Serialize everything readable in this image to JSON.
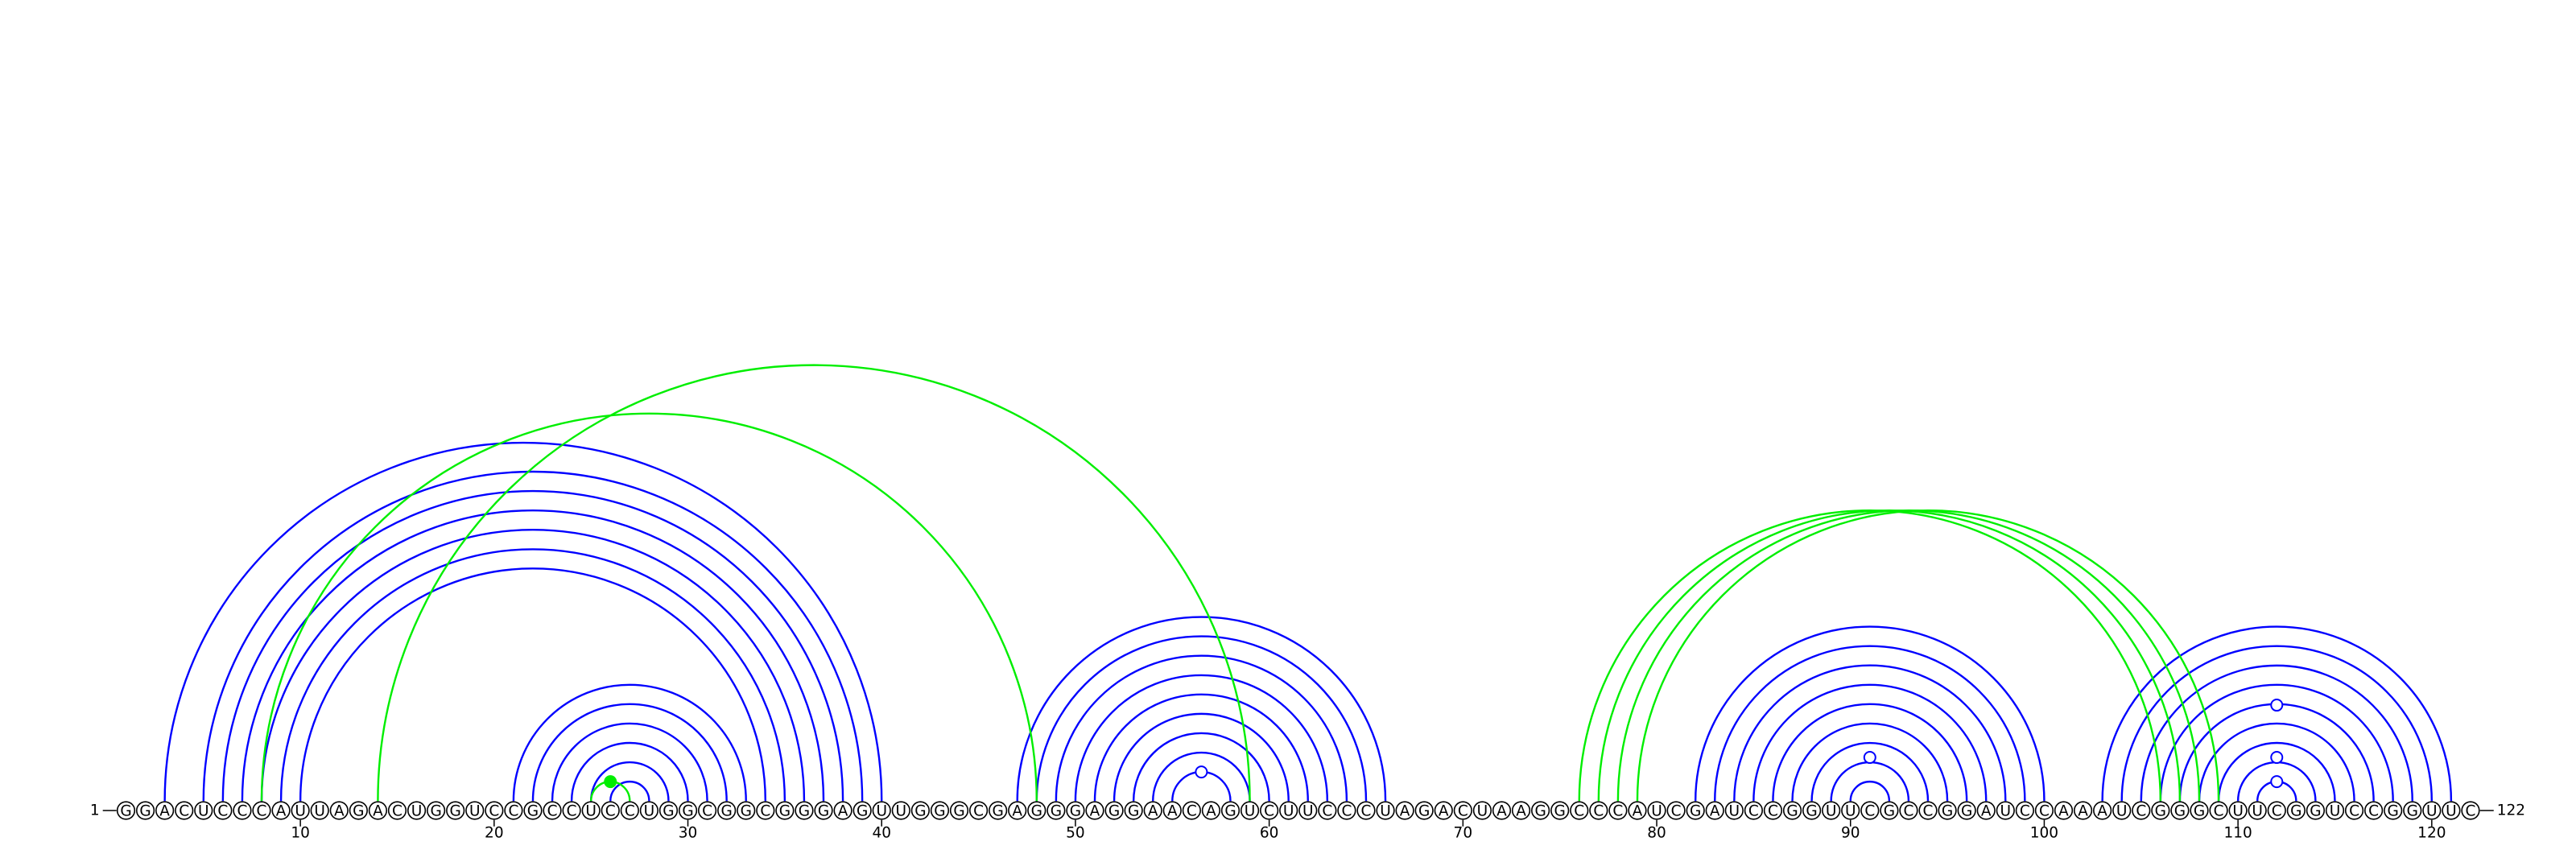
{
  "sequence": "GGACUCCCAUUAGACUGGUCCGCCUCCUGGCGGCGGGAGUUGGGCGAGGGAGGAACAGUCUUCCCUAGACUAAGGCCCAUCGAUCCGGUUCGCCGGAUCCAAAUCGGGCUUCGGUCCGGUUC",
  "start_label": "1",
  "end_label": "122",
  "tick_numbers": [
    "10",
    "20",
    "30",
    "40",
    "50",
    "60",
    "70",
    "80",
    "90",
    "100",
    "110",
    "120"
  ],
  "colors": {
    "structure_a": "#0000ff",
    "structure_b": "#00ee00",
    "backbone": "#000000"
  },
  "arc_groups": [
    {
      "structure": "a",
      "pairs": [
        [
          3,
          40
        ],
        [
          5,
          39
        ],
        [
          6,
          38
        ],
        [
          7,
          37
        ],
        [
          8,
          36
        ],
        [
          9,
          35
        ],
        [
          10,
          34
        ]
      ]
    },
    {
      "structure": "a",
      "pairs": [
        [
          21,
          33
        ],
        [
          22,
          32
        ],
        [
          23,
          31
        ],
        [
          24,
          30
        ],
        [
          25,
          29
        ],
        [
          26,
          28
        ]
      ]
    },
    {
      "structure": "a",
      "pairs": [
        [
          47,
          66
        ],
        [
          48,
          65
        ],
        [
          49,
          64
        ],
        [
          50,
          63
        ],
        [
          51,
          62
        ],
        [
          52,
          61
        ],
        [
          53,
          60
        ],
        [
          54,
          59
        ],
        [
          55,
          58
        ]
      ]
    },
    {
      "structure": "a",
      "pairs": [
        [
          82,
          100
        ],
        [
          83,
          99
        ],
        [
          84,
          98
        ],
        [
          85,
          97
        ],
        [
          86,
          96
        ],
        [
          87,
          95
        ],
        [
          88,
          94
        ],
        [
          89,
          93
        ],
        [
          90,
          92
        ]
      ]
    },
    {
      "structure": "a",
      "pairs": [
        [
          103,
          121
        ],
        [
          104,
          120
        ],
        [
          105,
          119
        ],
        [
          106,
          118
        ],
        [
          107,
          117
        ],
        [
          108,
          116
        ],
        [
          109,
          115
        ],
        [
          110,
          114
        ],
        [
          111,
          113
        ]
      ]
    },
    {
      "structure": "b",
      "pairs": [
        [
          8,
          48
        ],
        [
          14,
          59
        ]
      ]
    },
    {
      "structure": "b",
      "pairs": [
        [
          25,
          27
        ]
      ]
    },
    {
      "structure": "b",
      "pairs": [
        [
          76,
          106
        ],
        [
          77,
          107
        ],
        [
          78,
          108
        ],
        [
          79,
          109
        ]
      ]
    }
  ],
  "markers": [
    {
      "structure": "a",
      "position": 56.5,
      "level": 1,
      "filled": false
    },
    {
      "structure": "a",
      "position": 91,
      "level": 0.25,
      "filled": false
    },
    {
      "structure": "a",
      "position": 112,
      "level": 0.25,
      "filled": false
    },
    {
      "structure": "a",
      "position": 112,
      "level": 0.55,
      "filled": false
    },
    {
      "structure": "a",
      "position": 112,
      "level": 1,
      "filled": false
    },
    {
      "structure": "b",
      "position": 26,
      "level": 1,
      "filled": true
    }
  ]
}
